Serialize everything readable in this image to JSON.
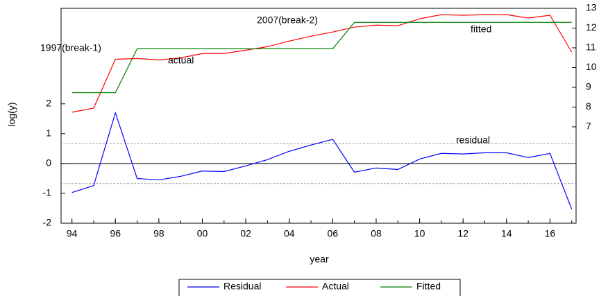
{
  "chart_data": {
    "type": "line",
    "y_label": "log(y)",
    "x_label": "year",
    "x": [
      1994,
      1995,
      1996,
      1997,
      1998,
      1999,
      2000,
      2001,
      2002,
      2003,
      2004,
      2005,
      2006,
      2007,
      2008,
      2009,
      2010,
      2011,
      2012,
      2013,
      2014,
      2015,
      2016,
      2017
    ],
    "series": [
      {
        "name": "Residual",
        "color": "#0000ff",
        "axis": "y",
        "values": [
          -0.97,
          -0.74,
          1.7,
          -0.5,
          -0.55,
          -0.43,
          -0.25,
          -0.27,
          -0.08,
          0.13,
          0.41,
          0.62,
          0.81,
          -0.29,
          -0.15,
          -0.2,
          0.15,
          0.34,
          0.32,
          0.36,
          0.36,
          0.2,
          0.34,
          -1.53
        ]
      },
      {
        "name": "Actual",
        "color": "#ff0000",
        "axis": "y2",
        "values": [
          7.74,
          7.95,
          10.42,
          10.46,
          10.39,
          10.49,
          10.71,
          10.71,
          10.88,
          11.06,
          11.34,
          11.59,
          11.8,
          12.05,
          12.15,
          12.12,
          12.47,
          12.68,
          12.65,
          12.68,
          12.68,
          12.51,
          12.65,
          10.78
        ]
      },
      {
        "name": "Fitted",
        "color": "#008000",
        "axis": "y2",
        "values": [
          8.73,
          8.73,
          8.73,
          10.95,
          10.95,
          10.95,
          10.95,
          10.95,
          10.95,
          10.95,
          10.95,
          10.95,
          10.95,
          12.29,
          12.29,
          12.29,
          12.29,
          12.29,
          12.29,
          12.29,
          12.29,
          12.29,
          12.29,
          12.29
        ]
      }
    ],
    "xlim": [
      1993.5,
      2017.2
    ],
    "xticks": [
      {
        "value": 1994,
        "label": "94"
      },
      {
        "value": 1996,
        "label": "96"
      },
      {
        "value": 1998,
        "label": "98"
      },
      {
        "value": 2000,
        "label": "00"
      },
      {
        "value": 2002,
        "label": "02"
      },
      {
        "value": 2004,
        "label": "04"
      },
      {
        "value": 2006,
        "label": "06"
      },
      {
        "value": 2008,
        "label": "08"
      },
      {
        "value": 2010,
        "label": "10"
      },
      {
        "value": 2012,
        "label": "12"
      },
      {
        "value": 2014,
        "label": "14"
      },
      {
        "value": 2016,
        "label": "16"
      }
    ],
    "ylim": [
      -2,
      5.2
    ],
    "yticks": [
      -2,
      -1,
      0,
      1,
      2
    ],
    "y2lim": [
      2.12,
      13
    ],
    "y2ticks": [
      7,
      8,
      9,
      10,
      11,
      12,
      13
    ],
    "hlines": [
      0,
      0.67,
      -0.67
    ],
    "annotations": [
      "1997(break-1)",
      "2007(break-2)",
      "actual",
      "fitted",
      "residual"
    ],
    "legend": "bottom"
  }
}
